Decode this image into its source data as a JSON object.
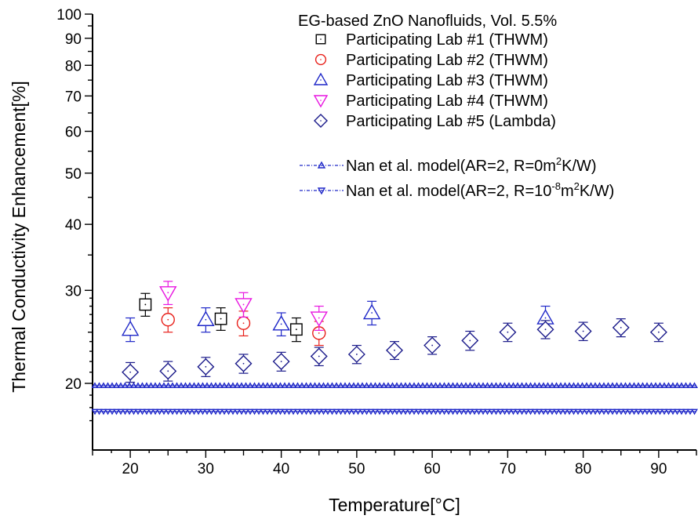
{
  "chart_data": {
    "type": "scatter",
    "title": "EG-based ZnO Nanofluids, Vol. 5.5%",
    "xlabel": "Temperature[°C]",
    "ylabel": "Thermal Conductivity Enhancement[%]",
    "xlim": [
      15,
      95
    ],
    "ylim": [
      16,
      100
    ],
    "y_scale": "log",
    "grid": false,
    "legend_position": "top-right",
    "x_ticks": [
      20,
      30,
      40,
      50,
      60,
      70,
      80,
      90
    ],
    "y_ticks": [
      20,
      30,
      40,
      50,
      60,
      70,
      80,
      90,
      100
    ],
    "series": [
      {
        "name": "Participating Lab #1 (THWM)",
        "marker": "square",
        "color": "#000000",
        "points": [
          {
            "x": 22,
            "y": 28.2,
            "err": 1.4
          },
          {
            "x": 32,
            "y": 26.5,
            "err": 1.3
          },
          {
            "x": 42,
            "y": 25.3,
            "err": 1.3
          }
        ]
      },
      {
        "name": "Participating Lab #2 (THWM)",
        "marker": "circle",
        "color": "#e8211b",
        "points": [
          {
            "x": 25,
            "y": 26.4,
            "err": 1.4
          },
          {
            "x": 35,
            "y": 26.0,
            "err": 1.4
          },
          {
            "x": 45,
            "y": 24.9,
            "err": 1.3
          }
        ]
      },
      {
        "name": "Participating Lab #3 (THWM)",
        "marker": "triangle-up",
        "color": "#1e27c8",
        "points": [
          {
            "x": 20,
            "y": 25.3,
            "err": 1.3
          },
          {
            "x": 30,
            "y": 26.4,
            "err": 1.4
          },
          {
            "x": 40,
            "y": 25.9,
            "err": 1.3
          },
          {
            "x": 52,
            "y": 27.2,
            "err": 1.4
          },
          {
            "x": 75,
            "y": 26.6,
            "err": 1.4
          }
        ]
      },
      {
        "name": "Participating Lab #4 (THWM)",
        "marker": "triangle-down",
        "color": "#e815e0",
        "points": [
          {
            "x": 25,
            "y": 29.7,
            "err": 1.5
          },
          {
            "x": 35,
            "y": 28.2,
            "err": 1.5
          },
          {
            "x": 45,
            "y": 26.6,
            "err": 1.4
          }
        ]
      },
      {
        "name": "Participating Lab #5 (Lambda)",
        "marker": "diamond",
        "color": "#1a1a8a",
        "points": [
          {
            "x": 20,
            "y": 21.0,
            "err": 0.9
          },
          {
            "x": 25,
            "y": 21.1,
            "err": 0.9
          },
          {
            "x": 30,
            "y": 21.5,
            "err": 0.9
          },
          {
            "x": 35,
            "y": 21.8,
            "err": 0.9
          },
          {
            "x": 40,
            "y": 22.0,
            "err": 0.9
          },
          {
            "x": 45,
            "y": 22.5,
            "err": 0.9
          },
          {
            "x": 50,
            "y": 22.7,
            "err": 0.9
          },
          {
            "x": 55,
            "y": 23.1,
            "err": 0.9
          },
          {
            "x": 60,
            "y": 23.6,
            "err": 0.9
          },
          {
            "x": 65,
            "y": 24.1,
            "err": 1.0
          },
          {
            "x": 70,
            "y": 25.0,
            "err": 1.0
          },
          {
            "x": 75,
            "y": 25.3,
            "err": 1.0
          },
          {
            "x": 80,
            "y": 25.1,
            "err": 1.0
          },
          {
            "x": 85,
            "y": 25.5,
            "err": 1.0
          },
          {
            "x": 90,
            "y": 25.0,
            "err": 1.0
          }
        ]
      }
    ],
    "model_lines": [
      {
        "name_prefix": "Nan et al. model(AR=2, R=0m",
        "name_sup1": "2",
        "name_suffix": "K/W)",
        "marker": "triangle-up",
        "color": "#1e27c8",
        "y": 19.8
      },
      {
        "name_prefix": "Nan et al. model(AR=2, R=10",
        "name_sup1": "-8",
        "name_mid": "m",
        "name_sup2": "2",
        "name_suffix": "K/W)",
        "marker": "triangle-down",
        "color": "#1e27c8",
        "y": 17.7
      }
    ]
  }
}
